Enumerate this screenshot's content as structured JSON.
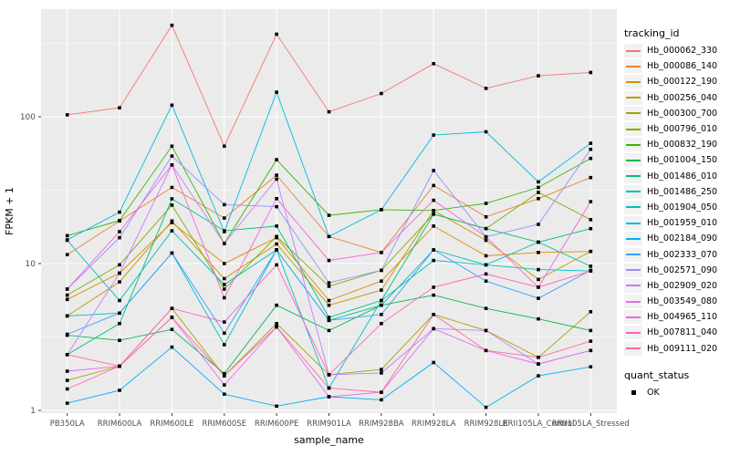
{
  "chart_data": {
    "type": "line",
    "title": "",
    "xlabel": "sample_name",
    "ylabel": "FPKM + 1",
    "yscale": "log10",
    "yticks": [
      1,
      10,
      100
    ],
    "ylim": [
      1,
      540
    ],
    "grid": "on",
    "panel_bg": "#EBEBEB",
    "grid_color": "#FFFFFF",
    "marker": "black-square",
    "legend_position": "right",
    "categories": [
      "PB350LA",
      "RRIM600LA",
      "RRIM600LE",
      "RRIM600SE",
      "RRIM600PE",
      "RRIM901LA",
      "RRIM928BA",
      "RRIM928LA",
      "RRIM928LE",
      "RRII105LA_Control",
      "RRII105LA_Stressed"
    ],
    "series": [
      {
        "name": "Hb_000062_330",
        "color": "#F8766D",
        "values": [
          103,
          115,
          420,
          63,
          365,
          108,
          144,
          230,
          156,
          190,
          200
        ]
      },
      {
        "name": "Hb_000086_140",
        "color": "#EA8331",
        "values": [
          11.5,
          19.5,
          33,
          20.4,
          40,
          15.3,
          11.9,
          34,
          20.8,
          27.7,
          38.5
        ]
      },
      {
        "name": "Hb_000122_190",
        "color": "#D89000",
        "values": [
          5.7,
          8.6,
          19,
          10,
          15,
          5.6,
          7.6,
          18,
          11.3,
          11.9,
          12.1
        ]
      },
      {
        "name": "Hb_000256_040",
        "color": "#C09B00",
        "values": [
          4.4,
          7.5,
          19.5,
          7.9,
          13.6,
          5.2,
          6.6,
          23,
          14.4,
          7.8,
          12.1
        ]
      },
      {
        "name": "Hb_000300_700",
        "color": "#A3A500",
        "values": [
          1.6,
          2.0,
          4.95,
          1.72,
          3.9,
          1.75,
          1.9,
          4.5,
          3.5,
          2.3,
          4.7
        ]
      },
      {
        "name": "Hb_000796_010",
        "color": "#7CAE00",
        "values": [
          6.1,
          9.8,
          25,
          6.7,
          15.3,
          7.0,
          9.0,
          21.7,
          17.3,
          30.5,
          19.9
        ]
      },
      {
        "name": "Hb_000832_190",
        "color": "#39B600",
        "values": [
          15.5,
          19.6,
          63,
          13.7,
          51,
          21.3,
          23.3,
          23,
          25.7,
          33,
          52
        ]
      },
      {
        "name": "Hb_001004_150",
        "color": "#00BB4E",
        "values": [
          3.25,
          3.0,
          3.56,
          1.78,
          5.2,
          3.5,
          5.2,
          6.1,
          4.95,
          4.2,
          3.5
        ]
      },
      {
        "name": "Hb_001486_010",
        "color": "#00BF7D",
        "values": [
          2.4,
          3.9,
          27.6,
          16.7,
          18,
          4.3,
          5.6,
          21.7,
          17.3,
          14,
          17.3
        ]
      },
      {
        "name": "Hb_001486_250",
        "color": "#00C0AF",
        "values": [
          14.4,
          5.6,
          16.7,
          7.2,
          12.4,
          4.1,
          5.2,
          12.4,
          9.8,
          14,
          9.6
        ]
      },
      {
        "name": "Hb_001904_050",
        "color": "#00BFC4",
        "values": [
          4.4,
          4.6,
          11.8,
          2.8,
          12.4,
          1.42,
          5.6,
          10.5,
          9.8,
          9.1,
          8.9
        ]
      },
      {
        "name": "Hb_001959_010",
        "color": "#00BAE0",
        "values": [
          14.5,
          22.4,
          120,
          16.5,
          147,
          15.3,
          23.3,
          75,
          79,
          36,
          66
        ]
      },
      {
        "name": "Hb_002184_090",
        "color": "#00B0F6",
        "values": [
          1.12,
          1.37,
          2.7,
          1.29,
          1.07,
          1.24,
          1.18,
          2.12,
          1.05,
          1.72,
          1.98
        ]
      },
      {
        "name": "Hb_002333_070",
        "color": "#35A2FF",
        "values": [
          3.3,
          4.6,
          11.8,
          3.36,
          12.4,
          4.1,
          4.5,
          12.4,
          7.6,
          5.8,
          9.0
        ]
      },
      {
        "name": "Hb_002571_090",
        "color": "#9590FF",
        "values": [
          6.7,
          15,
          54,
          25.2,
          24.4,
          7.4,
          9.0,
          43,
          15.2,
          18.5,
          60
        ]
      },
      {
        "name": "Hb_002909_020",
        "color": "#C77CFF",
        "values": [
          2.4,
          8.6,
          47,
          13.7,
          37.6,
          1.75,
          1.8,
          3.6,
          3.5,
          2.07,
          2.56
        ]
      },
      {
        "name": "Hb_003549_080",
        "color": "#E76BF3",
        "values": [
          1.85,
          2.0,
          4.3,
          1.49,
          3.7,
          1.24,
          1.33,
          3.6,
          2.56,
          2.07,
          2.56
        ]
      },
      {
        "name": "Hb_004965_110",
        "color": "#FA62DB",
        "values": [
          6.7,
          16.5,
          47,
          5.85,
          27.7,
          10.5,
          11.9,
          27,
          15.2,
          6.9,
          26.4
        ]
      },
      {
        "name": "Hb_007811_040",
        "color": "#FF62BC",
        "values": [
          1.4,
          2.0,
          4.95,
          4.0,
          9.8,
          1.75,
          3.9,
          6.9,
          8.5,
          6.9,
          8.9
        ]
      },
      {
        "name": "Hb_009111_020",
        "color": "#FF6A98",
        "values": [
          2.4,
          2.0,
          4.3,
          1.72,
          3.7,
          1.42,
          1.33,
          4.5,
          2.56,
          2.3,
          2.96
        ]
      }
    ]
  },
  "legend": {
    "tracking_title": "tracking_id",
    "quant_title": "quant_status",
    "quant_items": [
      {
        "label": "OK"
      }
    ]
  },
  "axes": {
    "x_title": "sample_name",
    "y_title": "FPKM + 1"
  },
  "colors": {
    "panel_bg": "#EBEBEB",
    "grid": "#FFFFFF",
    "tick_label": "#4D4D4D",
    "marker": "#000000",
    "legend_key_bg": "#F2F2F2"
  }
}
